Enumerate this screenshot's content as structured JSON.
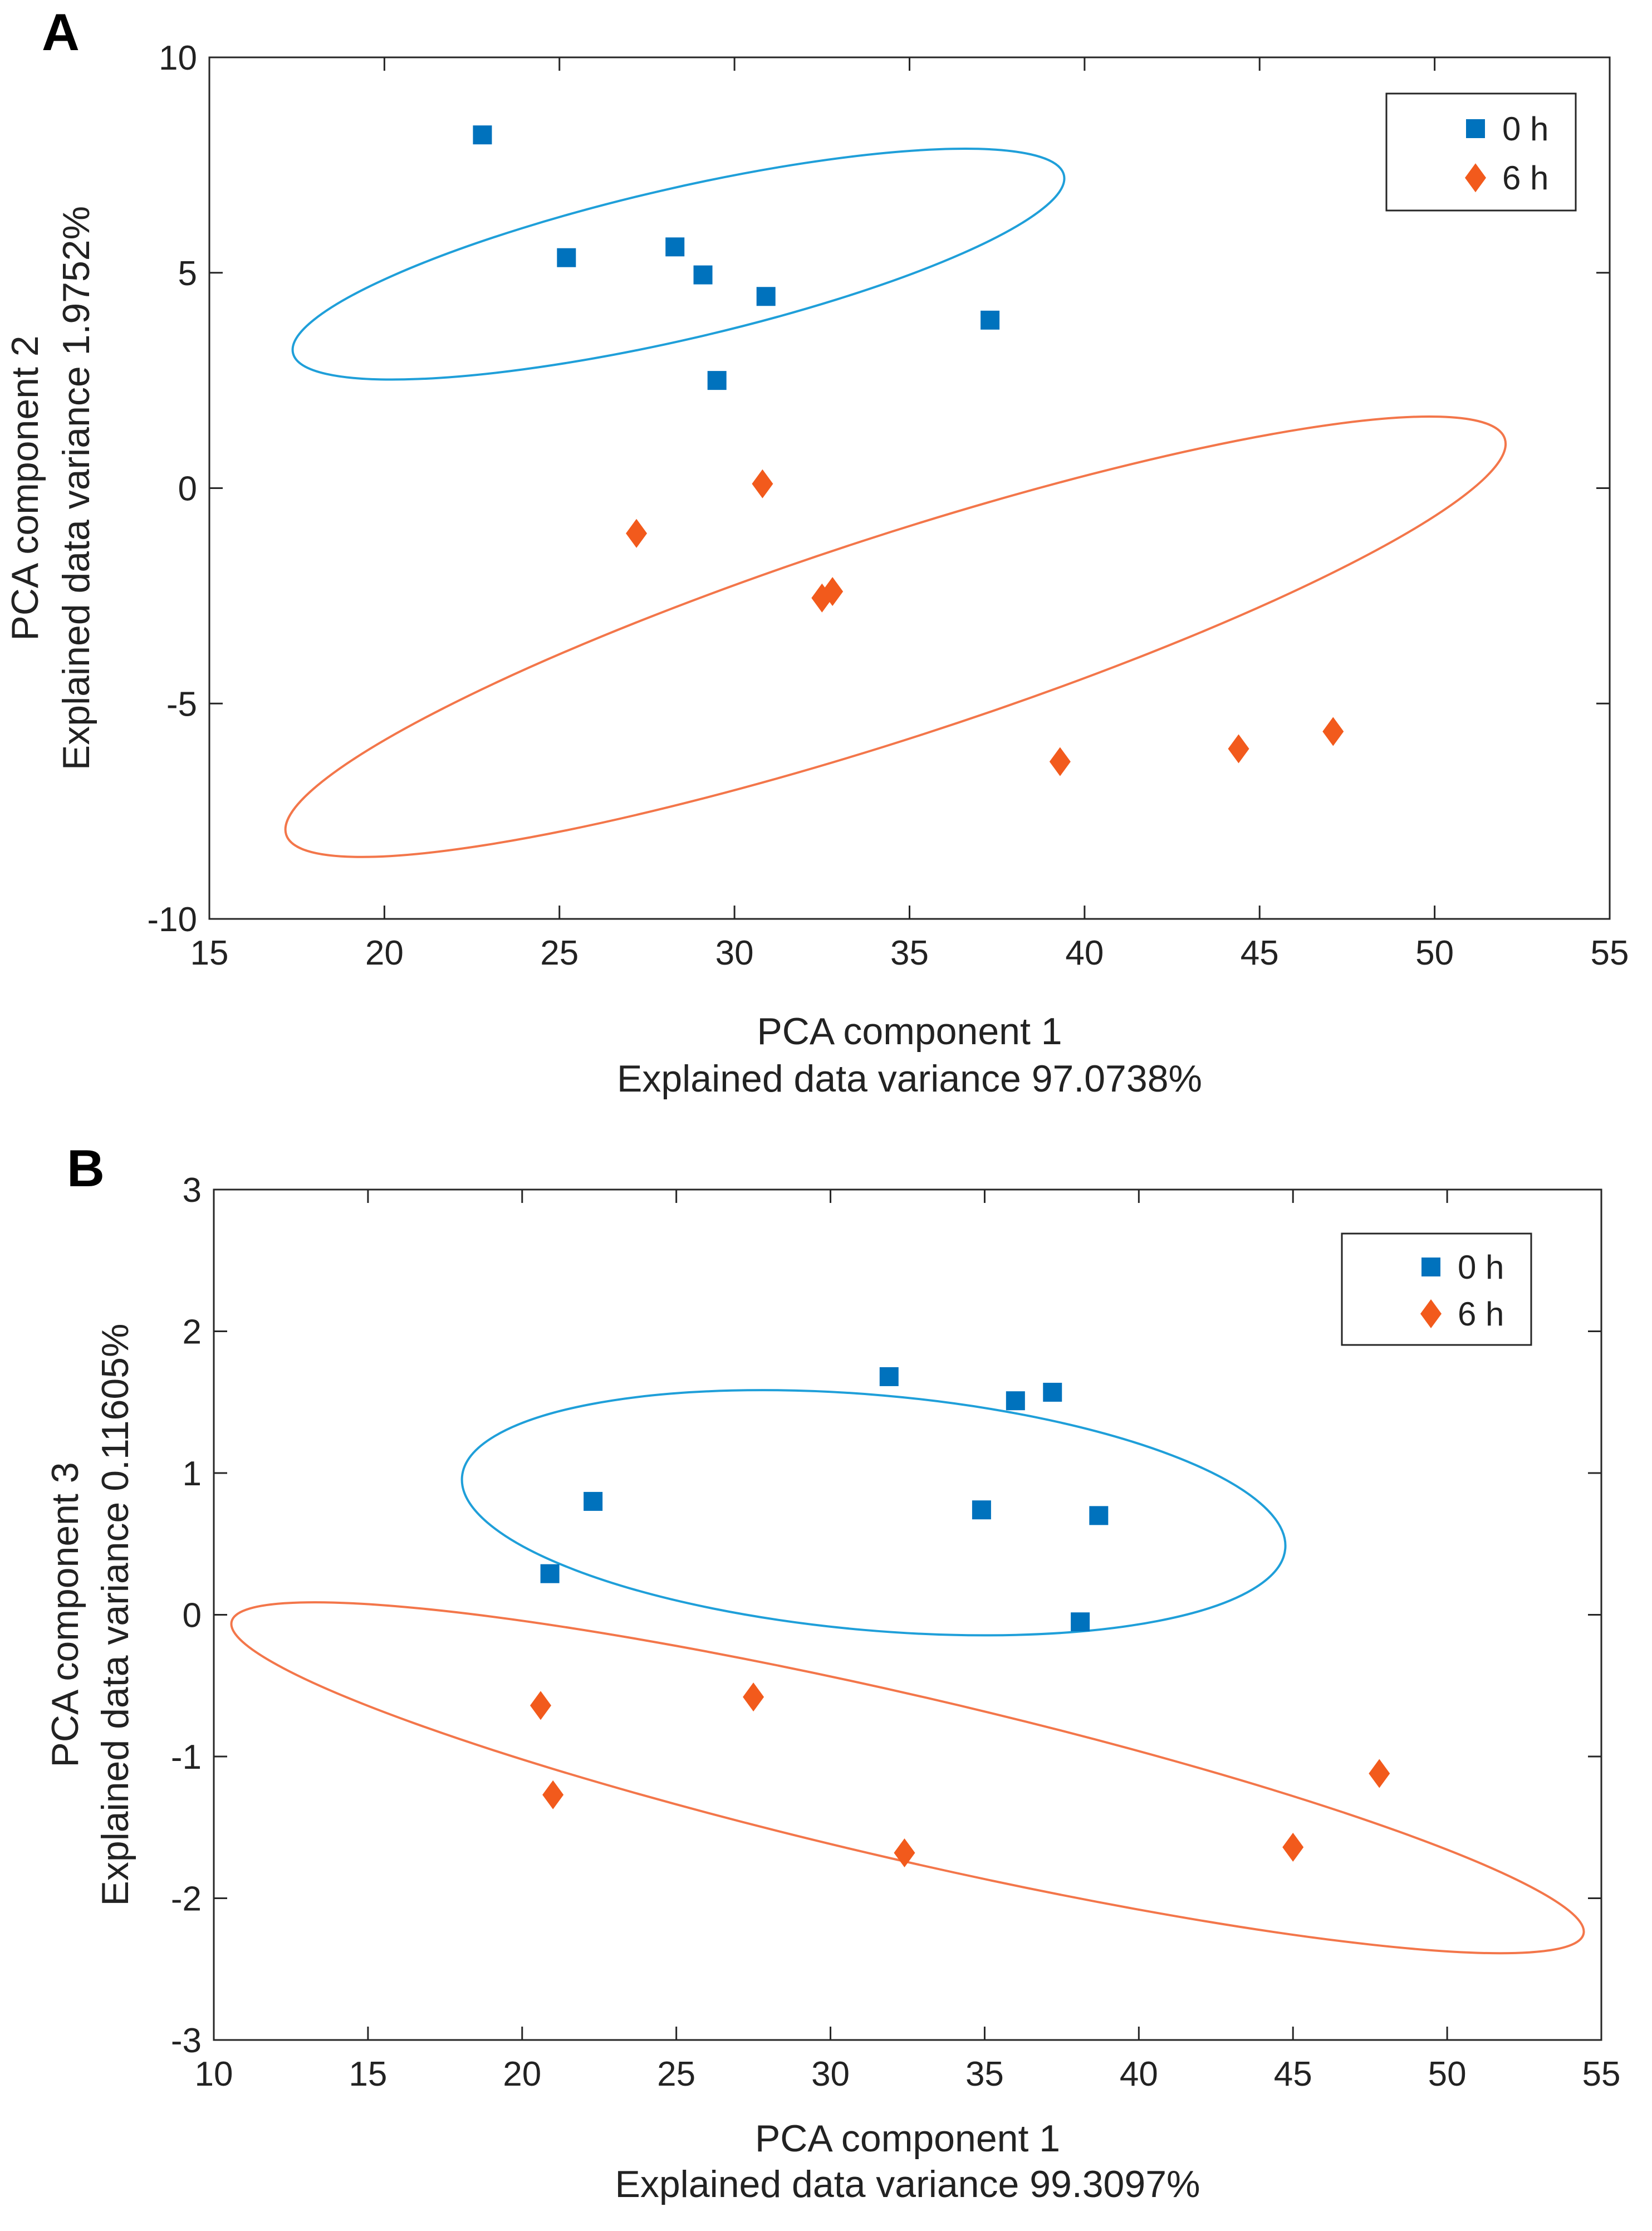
{
  "chart_data": [
    {
      "panel": "A",
      "type": "scatter",
      "xlabel": "PCA component 1",
      "xlabel2": "Explained data variance 97.0738%",
      "ylabel": "PCA component 2",
      "ylabel2": "Explained data variance 1.9752%",
      "xlim": [
        15,
        55
      ],
      "ylim": [
        -10,
        10
      ],
      "xticks": [
        15,
        20,
        25,
        30,
        35,
        40,
        45,
        50,
        55
      ],
      "yticks": [
        -10,
        -5,
        0,
        5,
        10
      ],
      "legend": "top-right",
      "grid": false,
      "series": [
        {
          "name": "0 h",
          "marker": "square",
          "color": "#0072bd",
          "points": [
            [
              22.8,
              8.2
            ],
            [
              25.2,
              5.35
            ],
            [
              28.3,
              5.6
            ],
            [
              29.1,
              4.95
            ],
            [
              30.9,
              4.45
            ],
            [
              37.3,
              3.9
            ],
            [
              29.5,
              2.5
            ]
          ],
          "ellipse": {
            "cx": 28.4,
            "cy": 5.2,
            "rx": 11.3,
            "ry": 1.75,
            "angle_deg": -13,
            "color": "#1f9fd9"
          }
        },
        {
          "name": "6 h",
          "marker": "diamond",
          "color": "#f25a1c",
          "points": [
            [
              30.8,
              0.1
            ],
            [
              27.2,
              -1.05
            ],
            [
              32.5,
              -2.55
            ],
            [
              32.8,
              -2.4
            ],
            [
              39.3,
              -6.35
            ],
            [
              44.4,
              -6.05
            ],
            [
              47.1,
              -5.65
            ]
          ],
          "ellipse": {
            "cx": 34.6,
            "cy": -3.45,
            "rx": 18.3,
            "ry": 2.35,
            "angle_deg": -18,
            "color": "#f3764a"
          }
        }
      ]
    },
    {
      "panel": "B",
      "type": "scatter",
      "xlabel": "PCA component 1",
      "xlabel2": "Explained data variance 99.3097%",
      "ylabel": "PCA component 3",
      "ylabel2": "Explained data variance 0.11605%",
      "xlim": [
        10,
        55
      ],
      "ylim": [
        -3,
        3
      ],
      "xticks": [
        10,
        15,
        20,
        25,
        30,
        35,
        40,
        45,
        50,
        55
      ],
      "yticks": [
        -3,
        -2,
        -1,
        0,
        1,
        2,
        3
      ],
      "legend": "top-right",
      "grid": false,
      "series": [
        {
          "name": "0 h",
          "marker": "square",
          "color": "#0072bd",
          "points": [
            [
              31.9,
              1.68
            ],
            [
              36.0,
              1.51
            ],
            [
              37.2,
              1.57
            ],
            [
              22.3,
              0.8
            ],
            [
              34.9,
              0.74
            ],
            [
              38.7,
              0.7
            ],
            [
              20.9,
              0.29
            ],
            [
              38.1,
              -0.05
            ]
          ],
          "ellipse": {
            "cx": 31.4,
            "cy": 0.72,
            "rx": 13.4,
            "ry": 0.83,
            "angle_deg": 5,
            "color": "#1f9fd9"
          }
        },
        {
          "name": "6 h",
          "marker": "diamond",
          "color": "#f25a1c",
          "points": [
            [
              20.6,
              -0.64
            ],
            [
              27.5,
              -0.58
            ],
            [
              21.0,
              -1.27
            ],
            [
              32.4,
              -1.68
            ],
            [
              45.0,
              -1.64
            ],
            [
              47.8,
              -1.12
            ]
          ],
          "ellipse": {
            "cx": 32.5,
            "cy": -1.15,
            "rx": 22.5,
            "ry": 0.58,
            "angle_deg": 13,
            "color": "#f3764a"
          }
        }
      ]
    }
  ]
}
